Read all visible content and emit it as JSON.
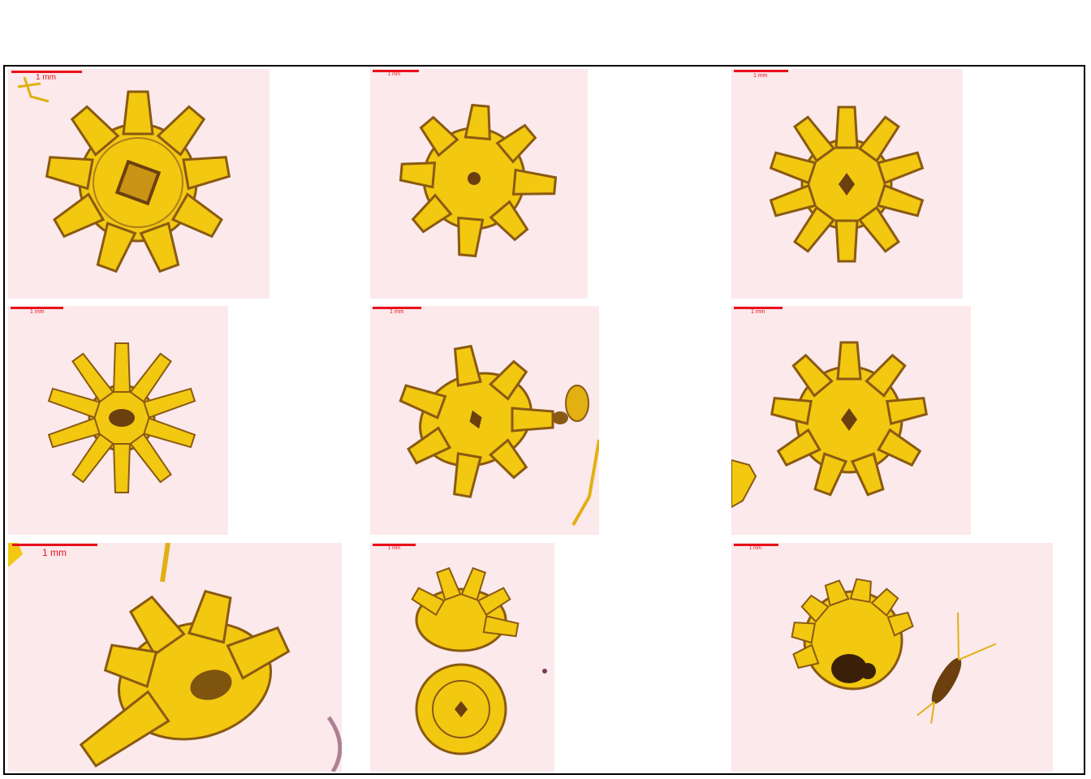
{
  "panels": [
    {
      "scale_label": "1 mm"
    },
    {
      "scale_label": "1 mm"
    },
    {
      "scale_label": "1 mm"
    },
    {
      "scale_label": "1 mm"
    },
    {
      "scale_label": "1 mm"
    },
    {
      "scale_label": "1 mm"
    },
    {
      "scale_label": "1 mm"
    },
    {
      "scale_label": "1 mm"
    },
    {
      "scale_label": "1 mm"
    }
  ],
  "colors": {
    "background": "#fbe9ec",
    "specimen_fill": "#f2c811",
    "specimen_dark": "#7a4a10",
    "scale_bar": "#e8121b",
    "frame": "#000000"
  },
  "subject": "jellyfish-ephyra-specimens"
}
